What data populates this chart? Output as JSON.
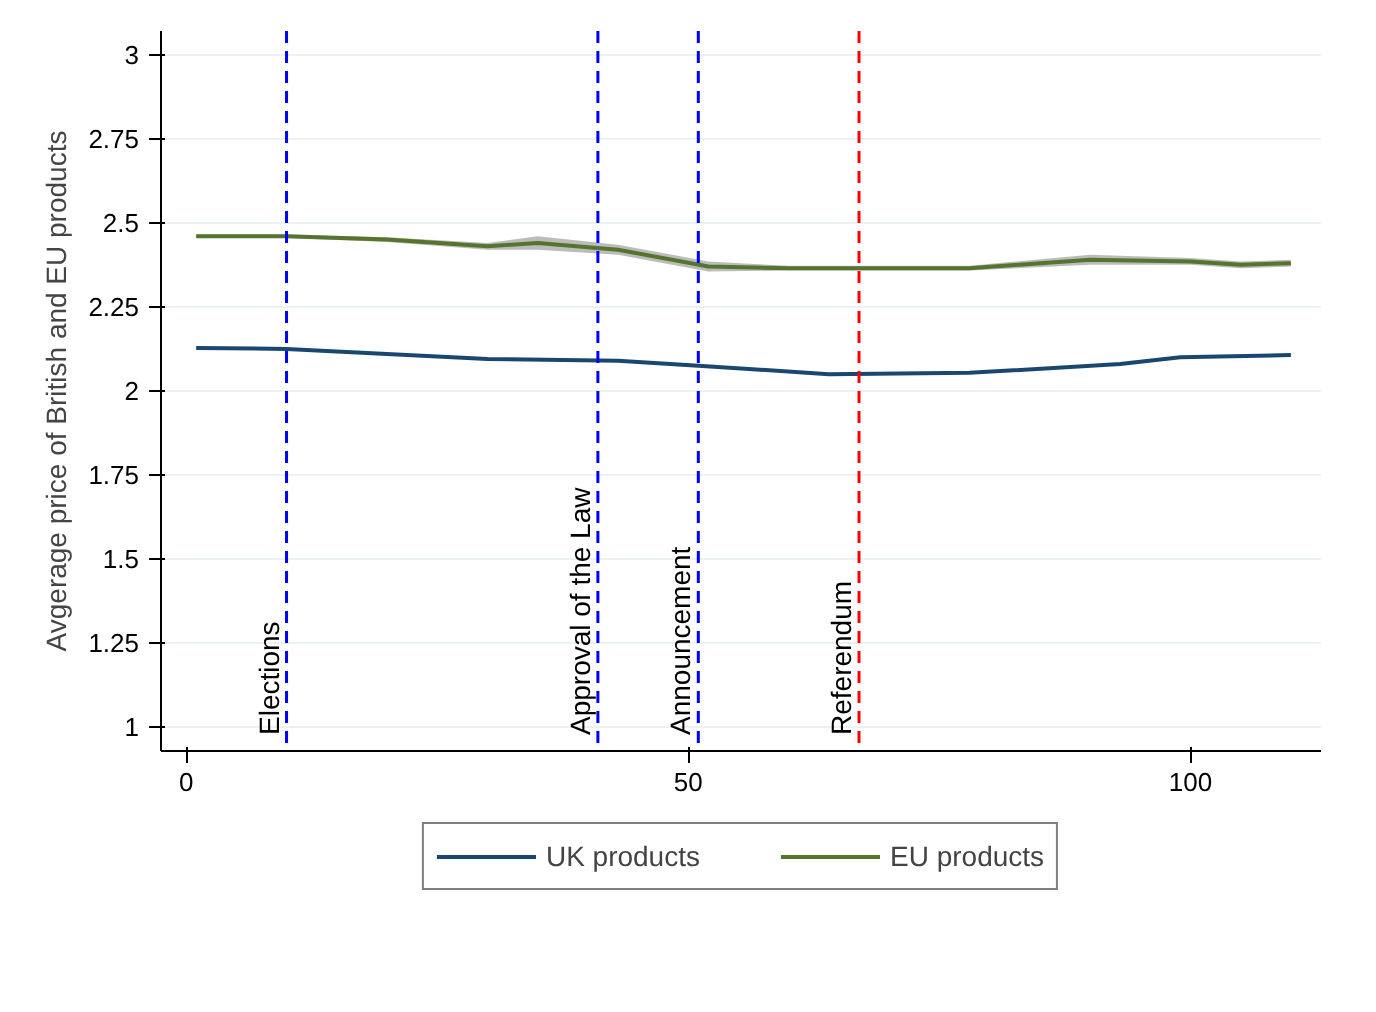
{
  "chart_data": {
    "type": "line",
    "ylabel": "Avgerage price of British and EU products",
    "xlim": [
      -2.5,
      113
    ],
    "ylim": [
      0.93,
      3.07
    ],
    "xticks": [
      0,
      50,
      100
    ],
    "yticks": [
      1,
      {
        "value": 1.25,
        "label": "1.25"
      },
      {
        "value": 1.5,
        "label": "1.5"
      },
      {
        "value": 1.75,
        "label": "1.75"
      },
      2,
      {
        "value": 2.25,
        "label": "2.25"
      },
      {
        "value": 2.5,
        "label": "2.5"
      },
      {
        "value": 2.75,
        "label": "2.75"
      },
      3
    ],
    "grid": "y",
    "legend": "bottom",
    "line_style": "solid",
    "marker": "none",
    "series": [
      {
        "name": "UK products",
        "color": "#1a476f",
        "x": [
          1,
          10,
          20,
          30,
          43,
          51,
          64,
          78,
          93,
          99,
          110
        ],
        "values": [
          2.128,
          2.125,
          2.11,
          2.095,
          2.09,
          2.075,
          2.05,
          2.054,
          2.08,
          2.1,
          2.107
        ]
      },
      {
        "name": "EU products",
        "color": "#55752f",
        "x": [
          1,
          10,
          20,
          30,
          35,
          43,
          52,
          60,
          78,
          90,
          100,
          105,
          110
        ],
        "values": [
          2.46,
          2.46,
          2.45,
          2.43,
          2.44,
          2.42,
          2.37,
          2.365,
          2.365,
          2.39,
          2.385,
          2.375,
          2.38
        ],
        "lower": [
          2.455,
          2.455,
          2.443,
          2.42,
          2.42,
          2.405,
          2.355,
          2.358,
          2.358,
          2.375,
          2.375,
          2.365,
          2.37
        ],
        "upper": [
          2.465,
          2.465,
          2.457,
          2.44,
          2.46,
          2.435,
          2.385,
          2.372,
          2.372,
          2.405,
          2.395,
          2.385,
          2.39
        ]
      }
    ],
    "ref_lines": [
      {
        "axis": "x",
        "value": 10,
        "label": "Elections",
        "color": "#0000ff",
        "line_style": "dashed"
      },
      {
        "axis": "x",
        "value": 41,
        "label": "Approval of the Law",
        "color": "#0000ff",
        "line_style": "dashed"
      },
      {
        "axis": "x",
        "value": 51,
        "label": "Announcement",
        "color": "#0000ff",
        "line_style": "dashed"
      },
      {
        "axis": "x",
        "value": 67,
        "label": "Referendum",
        "color": "#ff0000",
        "line_style": "dashed"
      }
    ]
  }
}
